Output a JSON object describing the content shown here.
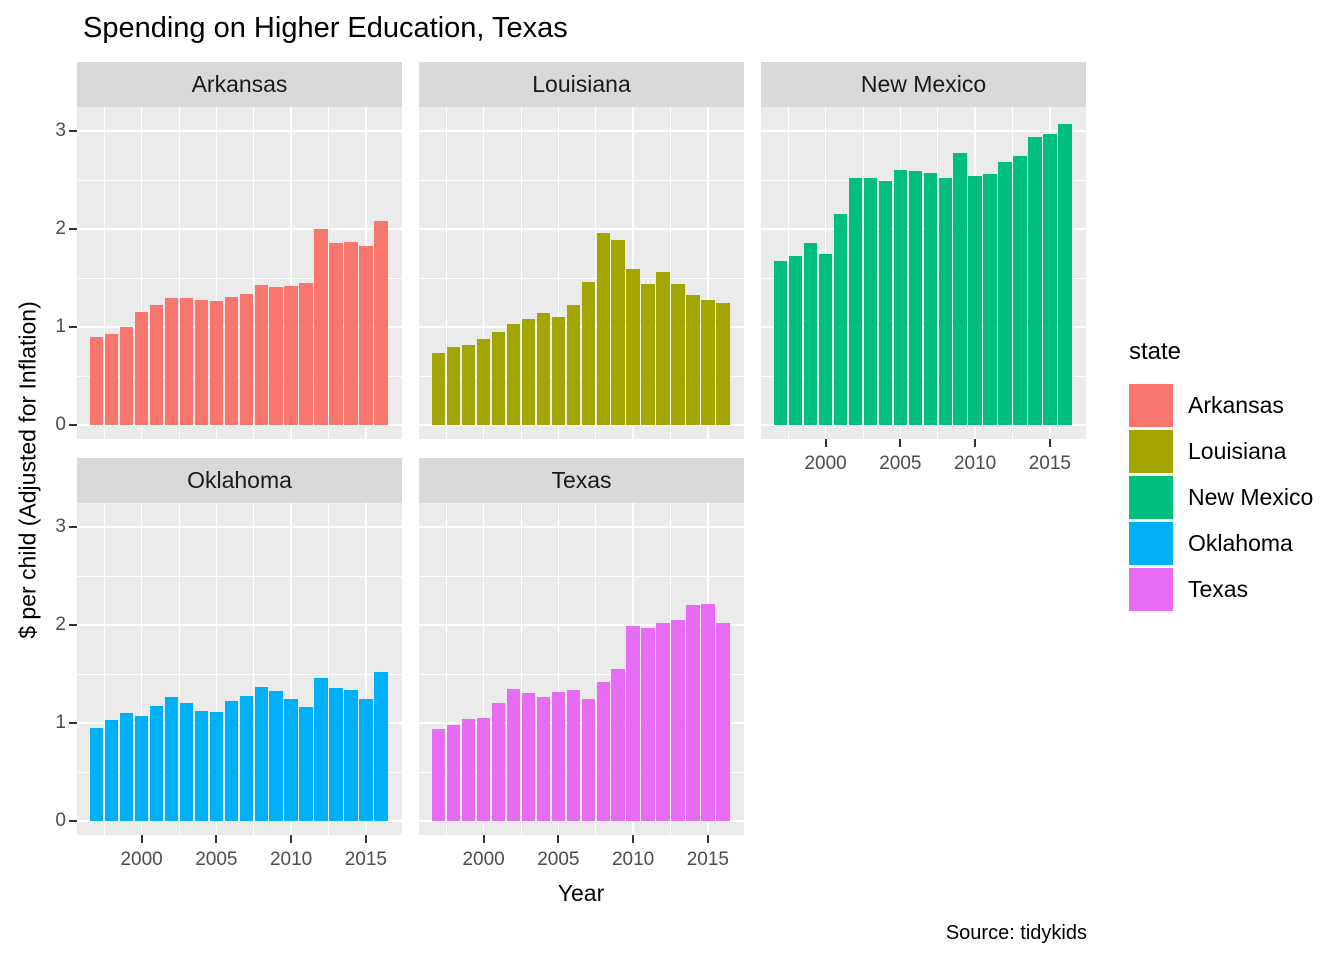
{
  "title": "Spending on Higher Education, Texas",
  "caption": "Source: tidykids",
  "axes": {
    "x_label": "Year",
    "y_label": "$ per child (Adjusted for Inflation)",
    "x_ticks": [
      2000,
      2005,
      2010,
      2015
    ],
    "y_ticks": [
      0,
      1,
      2,
      3
    ]
  },
  "legend": {
    "title": "state",
    "entries": [
      {
        "label": "Arkansas",
        "color": "#F8766D"
      },
      {
        "label": "Louisiana",
        "color": "#A3A500"
      },
      {
        "label": "New Mexico",
        "color": "#00BF7D"
      },
      {
        "label": "Oklahoma",
        "color": "#00B0F6"
      },
      {
        "label": "Texas",
        "color": "#E76BF3"
      }
    ]
  },
  "chart_data": {
    "type": "bar",
    "title": "Spending on Higher Education, Texas",
    "xlabel": "Year",
    "ylabel": "$ per child (Adjusted for Inflation)",
    "caption": "Source: tidykids",
    "legend_title": "state",
    "legend_position": "right",
    "grid": true,
    "panel_background": "#EBEBEB",
    "strip_background": "#D9D9D9",
    "gridline_color": "#FFFFFF",
    "x": [
      1997,
      1998,
      1999,
      2000,
      2001,
      2002,
      2003,
      2004,
      2005,
      2006,
      2007,
      2008,
      2009,
      2010,
      2011,
      2012,
      2013,
      2014,
      2015,
      2016
    ],
    "xlim": [
      1996,
      2017
    ],
    "ylim": [
      0,
      3.3
    ],
    "x_ticks": [
      2000,
      2005,
      2010,
      2015
    ],
    "y_ticks": [
      0,
      1,
      2,
      3
    ],
    "x_minor_gridlines": [
      1997.5,
      2002.5,
      2007.5,
      2012.5
    ],
    "y_minor_gridlines": [
      0.5,
      1.5,
      2.5
    ],
    "facets": [
      {
        "label": "Arkansas",
        "color": "#F8766D",
        "values": [
          0.9,
          0.93,
          1.0,
          1.15,
          1.22,
          1.3,
          1.3,
          1.28,
          1.27,
          1.31,
          1.34,
          1.43,
          1.41,
          1.42,
          1.45,
          2.0,
          1.86,
          1.87,
          1.83,
          2.08
        ]
      },
      {
        "label": "Louisiana",
        "color": "#A3A500",
        "values": [
          0.73,
          0.8,
          0.82,
          0.88,
          0.95,
          1.03,
          1.08,
          1.14,
          1.1,
          1.22,
          1.46,
          1.96,
          1.89,
          1.59,
          1.44,
          1.56,
          1.44,
          1.33,
          1.28,
          1.24
        ]
      },
      {
        "label": "New Mexico",
        "color": "#00BF7D",
        "values": [
          1.67,
          1.72,
          1.86,
          1.75,
          2.15,
          2.52,
          2.52,
          2.49,
          2.6,
          2.59,
          2.57,
          2.52,
          2.78,
          2.54,
          2.56,
          2.68,
          2.75,
          2.94,
          2.97,
          3.07
        ]
      },
      {
        "label": "Oklahoma",
        "color": "#00B0F6",
        "values": [
          0.95,
          1.03,
          1.1,
          1.07,
          1.17,
          1.27,
          1.2,
          1.12,
          1.11,
          1.22,
          1.28,
          1.37,
          1.33,
          1.24,
          1.16,
          1.46,
          1.36,
          1.34,
          1.25,
          1.52
        ]
      },
      {
        "label": "Texas",
        "color": "#E76BF3",
        "values": [
          0.94,
          0.98,
          1.04,
          1.05,
          1.2,
          1.35,
          1.31,
          1.27,
          1.32,
          1.34,
          1.25,
          1.42,
          1.55,
          1.99,
          1.97,
          2.02,
          2.05,
          2.2,
          2.21,
          2.02
        ]
      }
    ]
  }
}
